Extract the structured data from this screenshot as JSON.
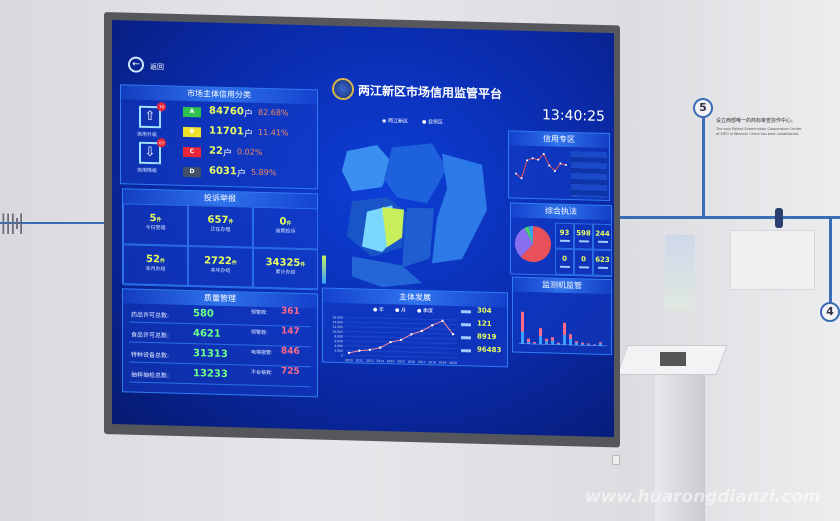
{
  "wall": {
    "step5": "5",
    "step4": "4",
    "caption_cn": "设立西部唯一的商标审查协作中心。",
    "caption_en": "The only Patent Examination Cooperation Center of SIPO in Western China has been established.",
    "watermark": "www.huarongdianzi.com"
  },
  "header": {
    "back_label": "返回",
    "title": "两江新区市场信用监管平台",
    "time": "13:40:25"
  },
  "credit": {
    "title": "市场主体信用分类",
    "upgrade_label": "信用升级",
    "upgrade_badge": "78",
    "downgrade_label": "信用降级",
    "downgrade_badge": "63",
    "rows": [
      {
        "grade": "A",
        "count": "84760",
        "unit": "户",
        "pct": "82.68%",
        "color": "#2fc24e"
      },
      {
        "grade": "B",
        "count": "11701",
        "unit": "户",
        "pct": "11.41%",
        "color": "#f0e02a"
      },
      {
        "grade": "C",
        "count": "22",
        "unit": "户",
        "pct": "0.02%",
        "color": "#e8283a"
      },
      {
        "grade": "D",
        "count": "6031",
        "unit": "户",
        "pct": "5.89%",
        "color": "#44506a"
      }
    ]
  },
  "complaints": {
    "title": "投诉举报",
    "unit": "件",
    "cells": [
      {
        "value": "5",
        "label": "今日受理"
      },
      {
        "value": "657",
        "label": "正在办理"
      },
      {
        "value": "0",
        "label": "逾期投诉"
      },
      {
        "value": "52",
        "label": "本月办结"
      },
      {
        "value": "2722",
        "label": "本年办结"
      },
      {
        "value": "34325",
        "label": "累计办结"
      }
    ]
  },
  "quality": {
    "title": "质量管理",
    "left": [
      {
        "label": "药品许可总数:",
        "value": "580"
      },
      {
        "label": "食品许可总数:",
        "value": "4621"
      },
      {
        "label": "特种设备总数:",
        "value": "31313"
      },
      {
        "label": "抽样抽检总数:",
        "value": "13233"
      }
    ],
    "right": [
      {
        "label": "预警数:",
        "value": "361"
      },
      {
        "label": "预警数:",
        "value": "147"
      },
      {
        "label": "电梯报警:",
        "value": "846"
      },
      {
        "label": "不合格数:",
        "value": "725"
      }
    ]
  },
  "map": {
    "options": [
      "两江新区",
      "自贸区"
    ]
  },
  "development": {
    "title": "主体发展",
    "toggles": [
      "年",
      "月",
      "季度"
    ],
    "stats": [
      "304",
      "121",
      "8919",
      "96483"
    ]
  },
  "credit_zone": {
    "title": "信用专区"
  },
  "enforcement": {
    "title": "综合执法",
    "cells": [
      "93",
      "598",
      "244",
      "0",
      "0",
      "623"
    ]
  },
  "monitor": {
    "title": "监测机监管"
  },
  "chart_data": [
    {
      "type": "line",
      "title": "主体发展",
      "x": [
        "2010",
        "2011",
        "2012",
        "2013",
        "2014",
        "2015",
        "2016",
        "2017",
        "2018",
        "2019",
        "2020"
      ],
      "values": [
        1000,
        2000,
        2500,
        3500,
        6000,
        7000,
        9500,
        11000,
        13500,
        15500,
        10000
      ],
      "ylim": [
        0,
        16000
      ],
      "yticks": [
        "0",
        "2,000",
        "4,000",
        "6,000",
        "8,000",
        "10,000",
        "12,000",
        "14,000",
        "16,000"
      ],
      "series_color": "#ff8aa0"
    },
    {
      "type": "line",
      "title": "信用专区",
      "values": [
        40,
        30,
        70,
        75,
        72,
        85,
        60,
        48,
        65,
        62
      ]
    },
    {
      "type": "pie",
      "title": "综合执法",
      "values": [
        62,
        30,
        4,
        4
      ],
      "colors": [
        "#e8505a",
        "#8a6ef0",
        "#4ad06a",
        "#3aa0ff"
      ]
    },
    {
      "type": "bar",
      "title": "监测机监管",
      "series": [
        {
          "values": [
            30,
            5,
            2,
            20,
            8,
            10,
            3,
            25,
            15,
            6,
            4,
            3,
            2,
            6
          ]
        },
        {
          "values": [
            50,
            8,
            3,
            20,
            6,
            8,
            2,
            30,
            12,
            4,
            3,
            2,
            1,
            3
          ]
        }
      ],
      "colors": [
        "#3aa0ff",
        "#ff6a8a"
      ]
    }
  ]
}
